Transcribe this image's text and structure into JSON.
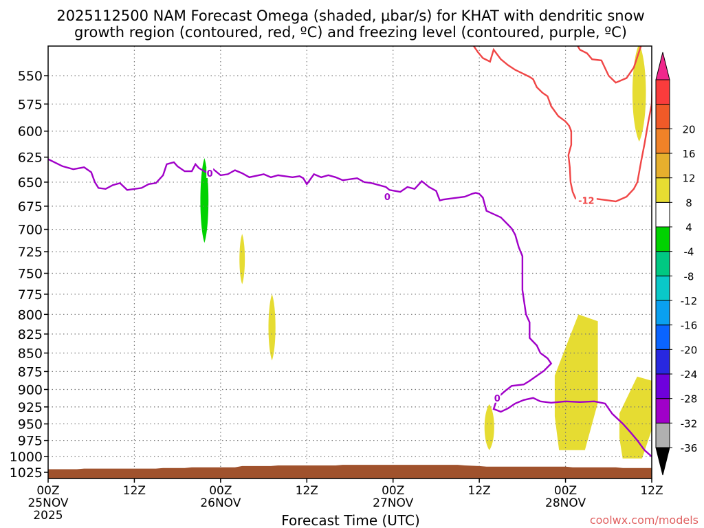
{
  "chart_data": {
    "type": "heatmap",
    "title_line1": "2025112500 NAM Forecast Omega (shaded, μbar/s) for KHAT with dendritic snow",
    "title_line2": "growth region (contoured, red, ºC) and freezing level (contoured, purple, ºC)",
    "xlabel": "Forecast Time (UTC)",
    "ylabel": "",
    "credit": "coolwx.com/models",
    "x_range_hours": [
      0,
      84
    ],
    "y_range_hpa": [
      525,
      1035
    ],
    "y_ticks": [
      550,
      575,
      600,
      625,
      650,
      675,
      700,
      725,
      750,
      775,
      800,
      825,
      850,
      875,
      900,
      925,
      950,
      975,
      1000,
      1025
    ],
    "x_ticks": [
      {
        "h": 0,
        "label": "00Z",
        "date": "25NOV",
        "year": "2025"
      },
      {
        "h": 12,
        "label": "12Z",
        "date": "",
        "year": ""
      },
      {
        "h": 24,
        "label": "00Z",
        "date": "26NOV",
        "year": ""
      },
      {
        "h": 36,
        "label": "12Z",
        "date": "",
        "year": ""
      },
      {
        "h": 48,
        "label": "00Z",
        "date": "27NOV",
        "year": ""
      },
      {
        "h": 60,
        "label": "12Z",
        "date": "",
        "year": ""
      },
      {
        "h": 72,
        "label": "00Z",
        "date": "28NOV",
        "year": ""
      },
      {
        "h": 84,
        "label": "12Z",
        "date": "",
        "year": ""
      }
    ],
    "colorbar": {
      "colors": [
        "#b0b0b0",
        "#a000c8",
        "#6e00dc",
        "#2828e0",
        "#0a64ff",
        "#0aa0f0",
        "#0ac8c8",
        "#00c882",
        "#00d200",
        "#ffffff",
        "#e6dc32",
        "#e6af2d",
        "#f08228",
        "#f05a28",
        "#fa3c3c"
      ],
      "labels": [
        "-36",
        "-32",
        "-28",
        "-24",
        "-20",
        "-16",
        "-12",
        "-8",
        "-4",
        "4",
        "8",
        "12",
        "16",
        "20"
      ],
      "below_color": "#000000",
      "above_color": "#f0288c"
    },
    "freezing_level": {
      "name": "0ºC freezing level",
      "color": "#a000c8",
      "label": "0",
      "points": [
        [
          0,
          627
        ],
        [
          2,
          634
        ],
        [
          3.5,
          637
        ],
        [
          5,
          635
        ],
        [
          6,
          640
        ],
        [
          6.5,
          650
        ],
        [
          7,
          656
        ],
        [
          8,
          657
        ],
        [
          9,
          653
        ],
        [
          10,
          651
        ],
        [
          11,
          658
        ],
        [
          13,
          656
        ],
        [
          14,
          652
        ],
        [
          15,
          651
        ],
        [
          16,
          643
        ],
        [
          16.5,
          632
        ],
        [
          17.5,
          630
        ],
        [
          18,
          634
        ],
        [
          19,
          639
        ],
        [
          20,
          639
        ],
        [
          20.5,
          632
        ],
        [
          21,
          636
        ],
        [
          22,
          640
        ],
        [
          23,
          637
        ],
        [
          24,
          643
        ],
        [
          25,
          642
        ],
        [
          25.5,
          640
        ],
        [
          26,
          638
        ],
        [
          27,
          641
        ],
        [
          28,
          645
        ],
        [
          30,
          642
        ],
        [
          31,
          645
        ],
        [
          32,
          643
        ],
        [
          34,
          645
        ],
        [
          35,
          644
        ],
        [
          35.5,
          646
        ],
        [
          36,
          652
        ],
        [
          37,
          642
        ],
        [
          38,
          645
        ],
        [
          39,
          643
        ],
        [
          40,
          645
        ],
        [
          41,
          648
        ],
        [
          43,
          646
        ],
        [
          44,
          650
        ],
        [
          45,
          651
        ],
        [
          47,
          655
        ],
        [
          47.5,
          658
        ],
        [
          49,
          660
        ],
        [
          50,
          655
        ],
        [
          51,
          657
        ],
        [
          52,
          649
        ],
        [
          53,
          655
        ],
        [
          54,
          659
        ],
        [
          54.5,
          669
        ],
        [
          55,
          668
        ],
        [
          56,
          667
        ],
        [
          58,
          665
        ],
        [
          59,
          662
        ],
        [
          59.5,
          661
        ],
        [
          60,
          662
        ],
        [
          60.5,
          666
        ],
        [
          61,
          680
        ],
        [
          63,
          687
        ],
        [
          64,
          695
        ],
        [
          64.5,
          699
        ],
        [
          65,
          706
        ],
        [
          65.5,
          720
        ],
        [
          66,
          730
        ],
        [
          66,
          770
        ],
        [
          66.5,
          800
        ],
        [
          67,
          810
        ],
        [
          67,
          830
        ],
        [
          68,
          840
        ],
        [
          68.5,
          850
        ],
        [
          69.5,
          857
        ],
        [
          70,
          864
        ],
        [
          69,
          874
        ],
        [
          67,
          888
        ],
        [
          66.2,
          893
        ],
        [
          64.5,
          895
        ],
        [
          63.5,
          903
        ],
        [
          62.5,
          912
        ],
        [
          62,
          928
        ],
        [
          63,
          932
        ],
        [
          64,
          927
        ],
        [
          65,
          920
        ],
        [
          66.2,
          915
        ],
        [
          67.5,
          912
        ],
        [
          68.5,
          917
        ],
        [
          70,
          919
        ],
        [
          72,
          917
        ],
        [
          74,
          918
        ],
        [
          76,
          917
        ],
        [
          77.5,
          920
        ],
        [
          78.5,
          935
        ],
        [
          80,
          950
        ],
        [
          81,
          962
        ],
        [
          82,
          975
        ],
        [
          83,
          990
        ],
        [
          84,
          1000
        ]
      ]
    },
    "dgz_minus12": {
      "name": "-12ºC contour",
      "color": "#f04646",
      "label": "-12",
      "points": [
        [
          59,
          523
        ],
        [
          59.8,
          530
        ],
        [
          60.5,
          535
        ],
        [
          61.5,
          538
        ],
        [
          62,
          528
        ],
        [
          63,
          536
        ],
        [
          64,
          541
        ],
        [
          65,
          545
        ],
        [
          66,
          548
        ],
        [
          67,
          551
        ],
        [
          67.5,
          553
        ],
        [
          68,
          560
        ],
        [
          68.8,
          565
        ],
        [
          69.5,
          568
        ],
        [
          70,
          577
        ],
        [
          71,
          586
        ],
        [
          72,
          591
        ],
        [
          72.5,
          595
        ],
        [
          72.8,
          600
        ],
        [
          72.8,
          613
        ],
        [
          72.4,
          623
        ],
        [
          72.6,
          635
        ],
        [
          72.7,
          650
        ],
        [
          73,
          660
        ],
        [
          73.4,
          667
        ],
        [
          76,
          667
        ],
        [
          78,
          669
        ],
        [
          79,
          670
        ],
        [
          80.5,
          665
        ],
        [
          81.5,
          657
        ],
        [
          82,
          650
        ],
        [
          82.5,
          630
        ],
        [
          83,
          612
        ],
        [
          83.5,
          592
        ],
        [
          84,
          575
        ],
        [
          84.2,
          530
        ],
        [
          84.5,
          523
        ]
      ],
      "upper_segment": [
        [
          73.5,
          523
        ],
        [
          74,
          528
        ],
        [
          75,
          531
        ],
        [
          75.7,
          536
        ],
        [
          77,
          537
        ],
        [
          78,
          550
        ],
        [
          79,
          556
        ],
        [
          80.5,
          552
        ],
        [
          81.5,
          543
        ],
        [
          82.5,
          525
        ],
        [
          82.7,
          523
        ]
      ]
    },
    "omega_regions": [
      {
        "value": "-4 to -8",
        "color": "#00d200",
        "hours": [
          21,
          22.5
        ],
        "hpa": [
          626,
          715
        ]
      },
      {
        "value": "4 to 8",
        "color": "#e6dc32",
        "hours": [
          26.5,
          27.5
        ],
        "hpa": [
          705,
          763
        ]
      },
      {
        "value": "4 to 8",
        "color": "#e6dc32",
        "hours": [
          30.5,
          31.8
        ],
        "hpa": [
          775,
          860
        ]
      },
      {
        "value": "4 to 8",
        "color": "#e6dc32",
        "hours": [
          60.5,
          62.3
        ],
        "hpa": [
          921,
          990
        ]
      },
      {
        "value": "4 to 8",
        "color": "#e6dc32",
        "hours": [
          70.5,
          76.5
        ],
        "hpa": [
          800,
          990
        ]
      },
      {
        "value": "4 to 8",
        "color": "#e6dc32",
        "hours": [
          79.5,
          84
        ],
        "hpa": [
          882,
          1003
        ]
      },
      {
        "value": "4 to 8",
        "color": "#e6dc32",
        "hours": [
          81,
          83.5
        ],
        "hpa": [
          523,
          610
        ]
      }
    ],
    "terrain": {
      "name": "surface / below ground",
      "color": "#a0522d",
      "surface_hpa": [
        [
          0,
          1020
        ],
        [
          4,
          1020
        ],
        [
          5,
          1019
        ],
        [
          15,
          1019
        ],
        [
          16,
          1018
        ],
        [
          19,
          1018
        ],
        [
          20,
          1017
        ],
        [
          26,
          1017
        ],
        [
          27,
          1015
        ],
        [
          31,
          1015
        ],
        [
          32,
          1014
        ],
        [
          40,
          1014
        ],
        [
          41,
          1013
        ],
        [
          57,
          1013
        ],
        [
          58,
          1014
        ],
        [
          60,
          1015
        ],
        [
          61,
          1016
        ],
        [
          72,
          1016
        ],
        [
          73,
          1017
        ],
        [
          79,
          1017
        ],
        [
          80,
          1018
        ],
        [
          84,
          1018
        ]
      ]
    }
  }
}
